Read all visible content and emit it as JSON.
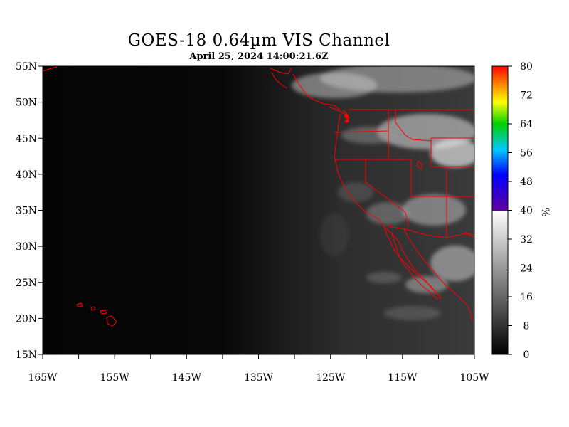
{
  "title": "GOES-18  0.64µm VIS Channel",
  "subtitle": "April 25,  2024 14:00:21.6Z",
  "colors": {
    "border": "#ff0000",
    "map_dark": "#060606",
    "land": "#2c2c2c",
    "cloud": "#cfcfcf"
  },
  "map": {
    "lon_range": [
      -165,
      -105
    ],
    "lat_range": [
      15,
      55
    ],
    "lat_labels": [
      {
        "lat": 55,
        "text": "55N"
      },
      {
        "lat": 50,
        "text": "50N"
      },
      {
        "lat": 45,
        "text": "45N"
      },
      {
        "lat": 40,
        "text": "40N"
      },
      {
        "lat": 35,
        "text": "35N"
      },
      {
        "lat": 30,
        "text": "30N"
      },
      {
        "lat": 25,
        "text": "25N"
      },
      {
        "lat": 20,
        "text": "20N"
      },
      {
        "lat": 15,
        "text": "15N"
      }
    ],
    "lon_labels": [
      {
        "lon": -165,
        "text": "165W"
      },
      {
        "lon": -155,
        "text": "155W"
      },
      {
        "lon": -145,
        "text": "145W"
      },
      {
        "lon": -135,
        "text": "135W"
      },
      {
        "lon": -125,
        "text": "125W"
      },
      {
        "lon": -115,
        "text": "115W"
      },
      {
        "lon": -105,
        "text": "105W"
      }
    ]
  },
  "colorbar": {
    "unit": "%",
    "ticks": [
      "80",
      "72",
      "64",
      "56",
      "48",
      "40",
      "32",
      "24",
      "16",
      "8",
      "0"
    ],
    "range": [
      0,
      80
    ]
  }
}
